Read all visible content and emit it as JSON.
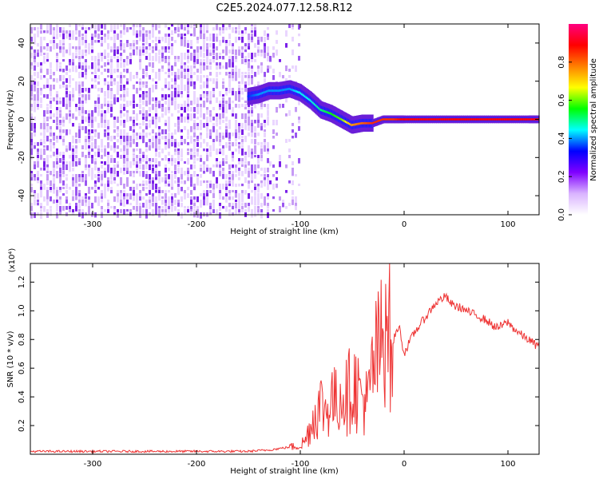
{
  "figure": {
    "title": "C2E5.2024.077.12.58.R12"
  },
  "chart_data": [
    {
      "type": "heatmap",
      "title": "C2E5.2024.077.12.58.R12",
      "xlabel": "Height of straight line (km)",
      "ylabel": "Frequency (Hz)",
      "xlim": [
        -360,
        130
      ],
      "ylim": [
        -50,
        50
      ],
      "x_ticks": [
        -300,
        -200,
        -100,
        0,
        100
      ],
      "x_tick_labels": [
        "-300",
        "-200",
        "-100",
        "0",
        "100"
      ],
      "y_ticks": [
        -40,
        -20,
        0,
        20,
        40
      ],
      "y_tick_labels": [
        "-40",
        "-20",
        "0",
        "20",
        "40"
      ],
      "grid": false,
      "colorbar": {
        "label": "Normalized spectral amplitude",
        "range": [
          0,
          1
        ],
        "ticks": [
          0.0,
          0.2,
          0.4,
          0.6,
          0.8
        ],
        "tick_labels": [
          "0.0",
          "0.2",
          "0.4",
          "0.6",
          "0.8"
        ],
        "colormap": "rainbow",
        "colors": [
          "#ffffff",
          "#d9b3ff",
          "#8000ff",
          "#0000ff",
          "#00ffff",
          "#00ff00",
          "#ffff00",
          "#ff8000",
          "#ff0000",
          "#ff0080"
        ]
      },
      "regions": [
        {
          "description_x_range": [
            -360,
            -130
          ],
          "frequency_range": [
            -50,
            50
          ],
          "amplitude": "low, noise-dominated"
        },
        {
          "description_x_range": [
            -130,
            -100
          ],
          "frequency_range": [
            -50,
            50
          ],
          "amplitude": "sparse noise"
        }
      ],
      "signal_track": {
        "x": [
          -150,
          -140,
          -130,
          -120,
          -110,
          -100,
          -90,
          -80,
          -70,
          -60,
          -50,
          -40,
          -30,
          -20,
          -10,
          0,
          20,
          40,
          60,
          80,
          100,
          120,
          130
        ],
        "frequency": [
          12,
          13,
          15,
          15,
          16,
          14,
          10,
          5,
          3,
          0,
          -3,
          -2,
          -2,
          0,
          0,
          0,
          0,
          0,
          0,
          0,
          0,
          0,
          0
        ],
        "peak_amplitude": [
          0.35,
          0.4,
          0.4,
          0.4,
          0.4,
          0.45,
          0.45,
          0.5,
          0.55,
          0.6,
          0.75,
          0.8,
          0.85,
          0.85,
          0.85,
          0.9,
          0.9,
          0.9,
          0.9,
          0.9,
          0.9,
          0.9,
          0.9
        ]
      }
    },
    {
      "type": "line",
      "xlabel": "Height of straight line (km)",
      "ylabel": "SNR (10 * v/v)",
      "y_multiplier_label": "(x10⁴)",
      "xlim": [
        -360,
        130
      ],
      "ylim": [
        0,
        1.33
      ],
      "x_ticks": [
        -300,
        -200,
        -100,
        0,
        100
      ],
      "x_tick_labels": [
        "-300",
        "-200",
        "-100",
        "0",
        "100"
      ],
      "y_ticks": [
        0.2,
        0.4,
        0.6,
        0.8,
        1.0,
        1.2
      ],
      "y_tick_labels": [
        "0.2",
        "0.4",
        "0.6",
        "0.8",
        "1.0",
        "1.2"
      ],
      "grid": false,
      "series": [
        {
          "color": "#ee3333",
          "x": [
            -360,
            -300,
            -250,
            -200,
            -150,
            -130,
            -120,
            -110,
            -100,
            -95,
            -90,
            -85,
            -80,
            -75,
            -70,
            -65,
            -60,
            -55,
            -50,
            -45,
            -40,
            -35,
            -30,
            -25,
            -20,
            -17,
            -14,
            -12,
            -10,
            -5,
            0,
            5,
            10,
            15,
            20,
            25,
            30,
            35,
            40,
            45,
            50,
            55,
            60,
            65,
            70,
            75,
            80,
            85,
            90,
            95,
            100,
            105,
            110,
            115,
            120,
            125,
            130
          ],
          "values": [
            0.02,
            0.02,
            0.02,
            0.02,
            0.02,
            0.03,
            0.04,
            0.05,
            0.06,
            0.1,
            0.2,
            0.3,
            0.35,
            0.3,
            0.4,
            0.35,
            0.45,
            0.4,
            0.5,
            0.45,
            0.4,
            0.35,
            0.6,
            0.7,
            0.8,
            1.3,
            1.0,
            0.5,
            0.8,
            0.9,
            0.7,
            0.78,
            0.85,
            0.9,
            0.95,
            1.0,
            1.05,
            1.08,
            1.1,
            1.05,
            1.03,
            1.02,
            1.0,
            0.98,
            0.97,
            0.95,
            0.93,
            0.9,
            0.88,
            0.9,
            0.92,
            0.88,
            0.85,
            0.82,
            0.8,
            0.77,
            0.75
          ]
        }
      ]
    }
  ]
}
